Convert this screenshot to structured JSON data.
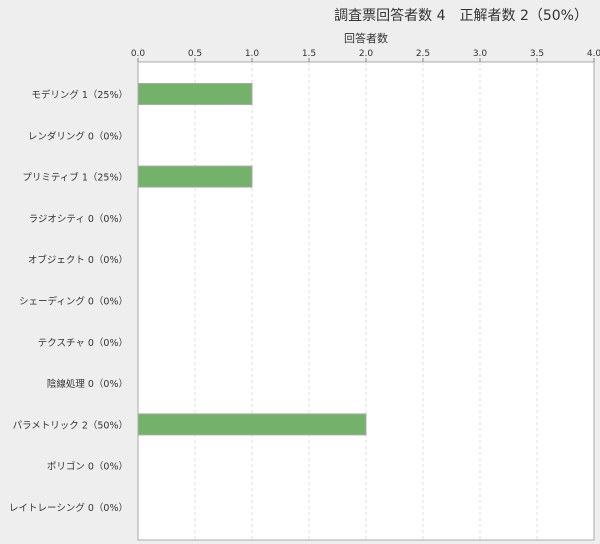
{
  "chart_data": {
    "type": "bar",
    "orientation": "horizontal",
    "title": "調査票回答者数 4　正解者数 2（50%）",
    "xlabel": "回答者数",
    "xlim": [
      0,
      4
    ],
    "xticks": [
      "0.0",
      "0.5",
      "1.0",
      "1.5",
      "2.0",
      "2.5",
      "3.0",
      "3.5",
      "4.0"
    ],
    "grid": true,
    "categories": [
      "モデリング 1（25%）",
      "レンダリング 0（0%）",
      "プリミティブ 1（25%）",
      "ラジオシティ 0（0%）",
      "オブジェクト 0（0%）",
      "シェーディング 0（0%）",
      "テクスチャ 0（0%）",
      "陰線処理 0（0%）",
      "パラメトリック 2（50%）",
      "ポリゴン 0（0%）",
      "レイトレーシング 0（0%）"
    ],
    "values": [
      1,
      0,
      1,
      0,
      0,
      0,
      0,
      0,
      2,
      0,
      0
    ],
    "colors": {
      "bar": "#74b16a",
      "bar_border": "#aaaaaa"
    }
  }
}
